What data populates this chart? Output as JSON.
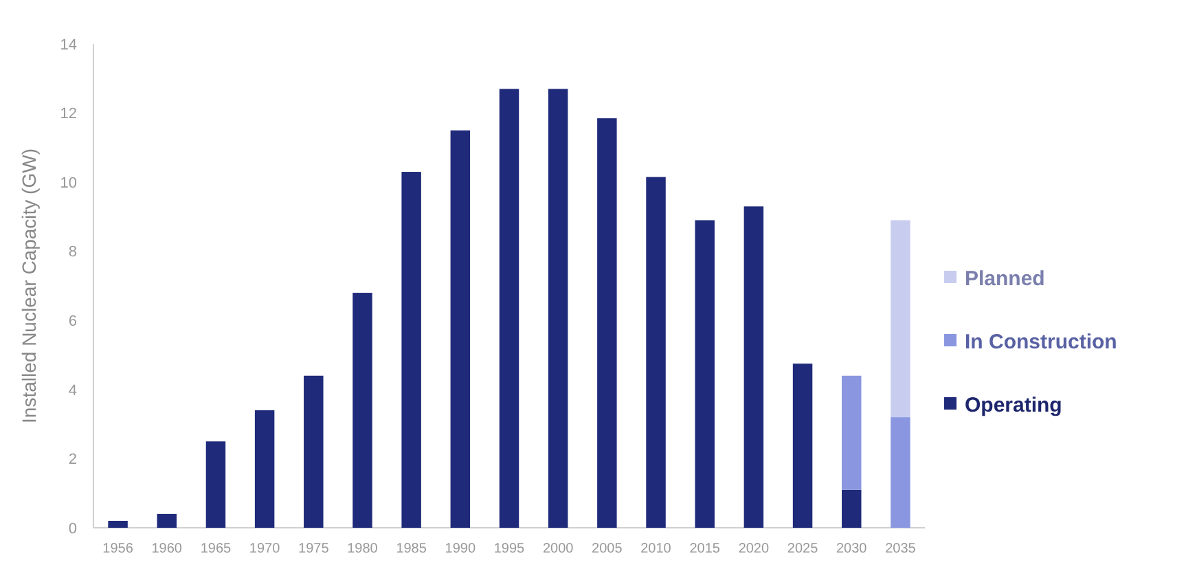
{
  "chart_data": {
    "type": "bar",
    "stacked": true,
    "ylabel": "Installed Nuclear Capacity (GW)",
    "categories": [
      "1956",
      "1960",
      "1965",
      "1970",
      "1975",
      "1980",
      "1985",
      "1990",
      "1995",
      "2000",
      "2005",
      "2010",
      "2015",
      "2020",
      "2025",
      "2030",
      "2035"
    ],
    "series": [
      {
        "name": "Operating",
        "color": "#1f2a7a",
        "values": [
          0.2,
          0.4,
          2.5,
          3.4,
          4.4,
          6.8,
          10.3,
          11.5,
          12.7,
          12.7,
          11.85,
          10.15,
          8.9,
          9.3,
          4.75,
          1.1,
          null
        ]
      },
      {
        "name": "In Construction",
        "color": "#8a97e0",
        "values": [
          null,
          null,
          null,
          null,
          null,
          null,
          null,
          null,
          null,
          null,
          null,
          null,
          null,
          null,
          null,
          3.3,
          3.2
        ]
      },
      {
        "name": "Planned",
        "color": "#c8cdf0",
        "values": [
          null,
          null,
          null,
          null,
          null,
          null,
          null,
          null,
          null,
          null,
          null,
          null,
          null,
          null,
          null,
          null,
          5.7
        ]
      }
    ],
    "ylim": [
      0,
      14
    ],
    "yticks": [
      0,
      2,
      4,
      6,
      8,
      10,
      12,
      14
    ],
    "grid": false,
    "legend": "right"
  }
}
